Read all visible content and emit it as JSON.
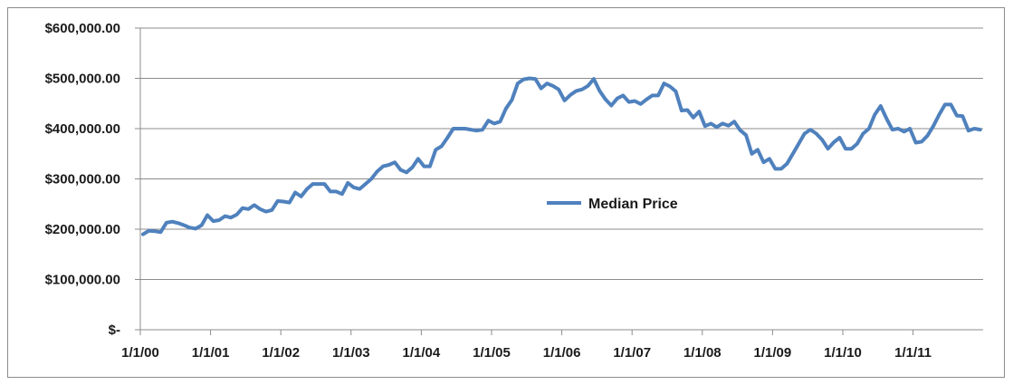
{
  "chart_data": {
    "type": "line",
    "title": "",
    "xlabel": "",
    "ylabel": "",
    "x_start": "2000-01",
    "x_step": "month",
    "x_ticks": [
      "1/1/00",
      "1/1/01",
      "1/1/02",
      "1/1/03",
      "1/1/04",
      "1/1/05",
      "1/1/06",
      "1/1/07",
      "1/1/08",
      "1/1/09",
      "1/1/10",
      "1/1/11"
    ],
    "y_ticks": [
      "$-",
      "$100,000.00",
      "$200,000.00",
      "$300,000.00",
      "$400,000.00",
      "$500,000.00",
      "$600,000.00"
    ],
    "ylim": [
      0,
      600000
    ],
    "grid": "horizontal",
    "legend": "center",
    "color": "#4f81bd",
    "series": [
      {
        "name": "Median Price",
        "values": [
          190000,
          197000,
          196000,
          194000,
          213000,
          215000,
          212000,
          208000,
          203000,
          201000,
          208000,
          228000,
          216000,
          218000,
          226000,
          223000,
          229000,
          242000,
          240000,
          248000,
          240000,
          235000,
          238000,
          256000,
          255000,
          253000,
          273000,
          265000,
          280000,
          290000,
          290000,
          290000,
          275000,
          275000,
          270000,
          292000,
          283000,
          280000,
          290000,
          300000,
          315000,
          325000,
          328000,
          333000,
          318000,
          313000,
          323000,
          340000,
          325000,
          325000,
          358000,
          365000,
          382000,
          400000,
          400000,
          400000,
          398000,
          396000,
          398000,
          416000,
          410000,
          414000,
          440000,
          457000,
          490000,
          498000,
          500000,
          499000,
          480000,
          490000,
          485000,
          478000,
          456000,
          467000,
          475000,
          478000,
          485000,
          499000,
          475000,
          458000,
          446000,
          460000,
          466000,
          453000,
          455000,
          449000,
          458000,
          466000,
          466000,
          490000,
          484000,
          474000,
          436000,
          437000,
          422000,
          434000,
          405000,
          410000,
          403000,
          410000,
          406000,
          414000,
          397000,
          387000,
          350000,
          358000,
          333000,
          340000,
          320000,
          320000,
          330000,
          350000,
          370000,
          390000,
          398000,
          390000,
          378000,
          360000,
          373000,
          382000,
          360000,
          360000,
          370000,
          390000,
          400000,
          428000,
          445000,
          420000,
          398000,
          400000,
          394000,
          400000,
          372000,
          374000,
          386000,
          405000,
          428000,
          448000,
          448000,
          426000,
          425000,
          396000,
          400000,
          398000
        ]
      }
    ]
  }
}
